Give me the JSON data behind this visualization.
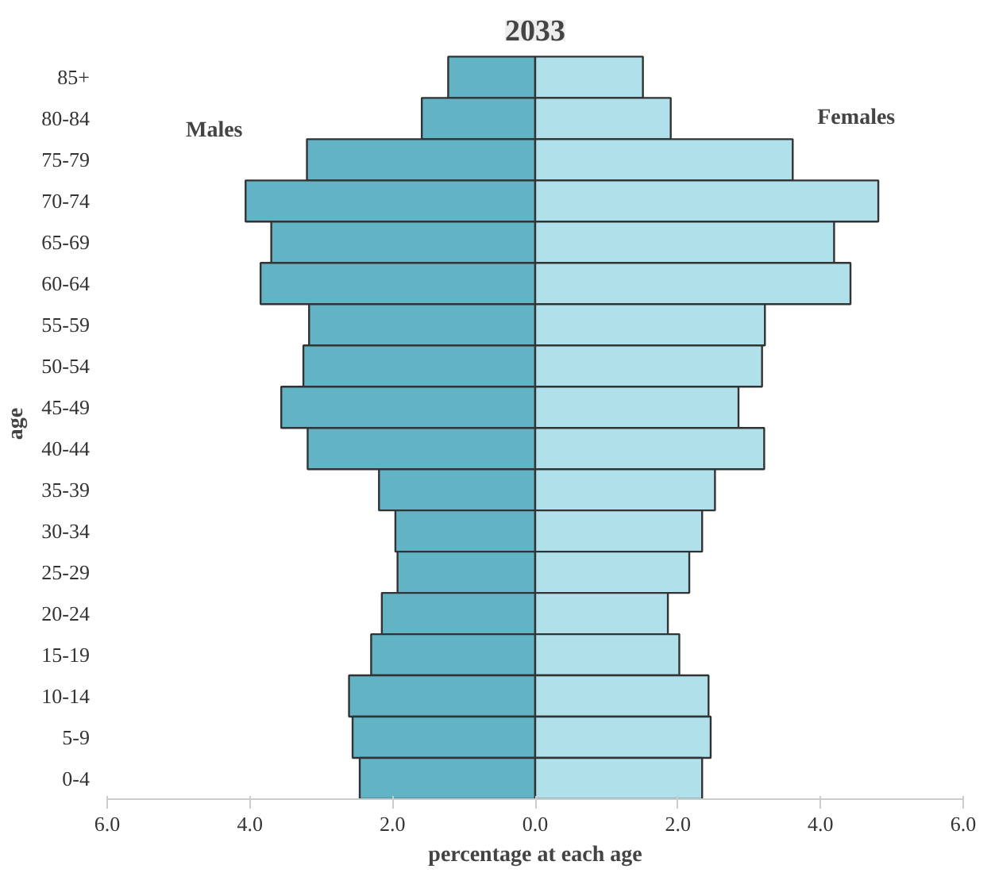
{
  "chart_data": {
    "type": "bar",
    "orientation": "horizontal",
    "title": "2033",
    "xlabel": "percentage at each age",
    "ylabel": "age",
    "categories": [
      "85+",
      "80-84",
      "75-79",
      "70-74",
      "65-69",
      "60-64",
      "55-59",
      "50-54",
      "45-49",
      "40-44",
      "35-39",
      "30-34",
      "25-29",
      "20-24",
      "15-19",
      "10-14",
      "5-9",
      "0-4"
    ],
    "series": [
      {
        "name": "Males",
        "color": "#62b3c4",
        "values": [
          -1.22,
          -1.59,
          -3.2,
          -4.06,
          -3.7,
          -3.85,
          -3.17,
          -3.25,
          -3.56,
          -3.19,
          -2.19,
          -1.96,
          -1.93,
          -2.15,
          -2.3,
          -2.61,
          -2.56,
          -2.46
        ]
      },
      {
        "name": "Females",
        "color": "#b0e0ea",
        "values": [
          1.51,
          1.9,
          3.61,
          4.81,
          4.19,
          4.42,
          3.22,
          3.18,
          2.85,
          3.21,
          2.52,
          2.34,
          2.16,
          1.86,
          2.02,
          2.43,
          2.46,
          2.34
        ]
      }
    ],
    "xlim": [
      -6,
      6
    ],
    "xticks": [
      {
        "value": -6,
        "label": "6.0"
      },
      {
        "value": -4,
        "label": "4.0"
      },
      {
        "value": -2,
        "label": "2.0"
      },
      {
        "value": 0,
        "label": "0.0"
      },
      {
        "value": 2,
        "label": "2.0"
      },
      {
        "value": 4,
        "label": "4.0"
      },
      {
        "value": 6,
        "label": "6.0"
      }
    ],
    "grid": false,
    "stacked": true
  }
}
